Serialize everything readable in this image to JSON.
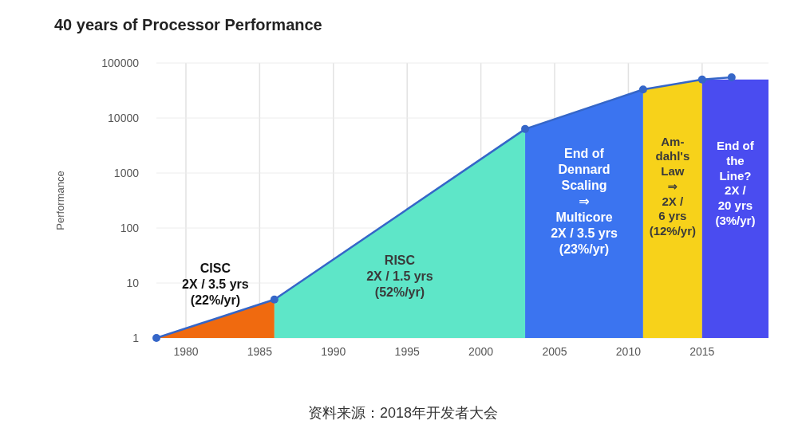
{
  "chart_data": {
    "type": "area",
    "title": "40 years of Processor Performance",
    "ylabel": "Performance",
    "log": "y",
    "grid": true,
    "xlim": [
      1978,
      2019.5
    ],
    "ylim": [
      1,
      100000
    ],
    "xticks": [
      1980,
      1985,
      1990,
      1995,
      2000,
      2005,
      2010,
      2015
    ],
    "yticks": [
      1,
      10,
      100,
      1000,
      10000,
      100000
    ],
    "series": [
      {
        "name": "CISC\n2X / 3.5 yrs\n(22%/yr)",
        "color": "#f06a0f",
        "x": [
          1978,
          1986
        ],
        "values": [
          1,
          5
        ]
      },
      {
        "name": "RISC\n2X / 1.5 yrs\n(52%/yr)",
        "color": "#5ee6c8",
        "x": [
          1986,
          2003
        ],
        "values": [
          5,
          6300
        ]
      },
      {
        "name": "End of\nDennard\nScaling\n⇒\nMulticore\n2X / 3.5 yrs\n(23%/yr)",
        "color": "#3b74f0",
        "x": [
          2003,
          2011
        ],
        "values": [
          6300,
          33000
        ]
      },
      {
        "name": "Am-\ndahl's\nLaw\n⇒\n2X /\n6 yrs\n(12%/yr)",
        "color": "#f7d21a",
        "x": [
          2011,
          2015
        ],
        "values": [
          33000,
          50000
        ]
      },
      {
        "name": "End of\nthe\nLine?\n2X /\n20 yrs\n(3%/yr)",
        "color": "#4a4cf0",
        "x": [
          2015,
          2019.5
        ],
        "values": [
          50000,
          50000
        ]
      },
      {
        "type": "line",
        "marker": "circle",
        "color": "#3566c8",
        "x": [
          1978,
          1986,
          2003,
          2011,
          2015,
          2017
        ],
        "values": [
          1,
          5,
          6300,
          33000,
          50000,
          55000
        ]
      }
    ],
    "annotations": [
      "资料来源：2018年开发者大会"
    ]
  }
}
